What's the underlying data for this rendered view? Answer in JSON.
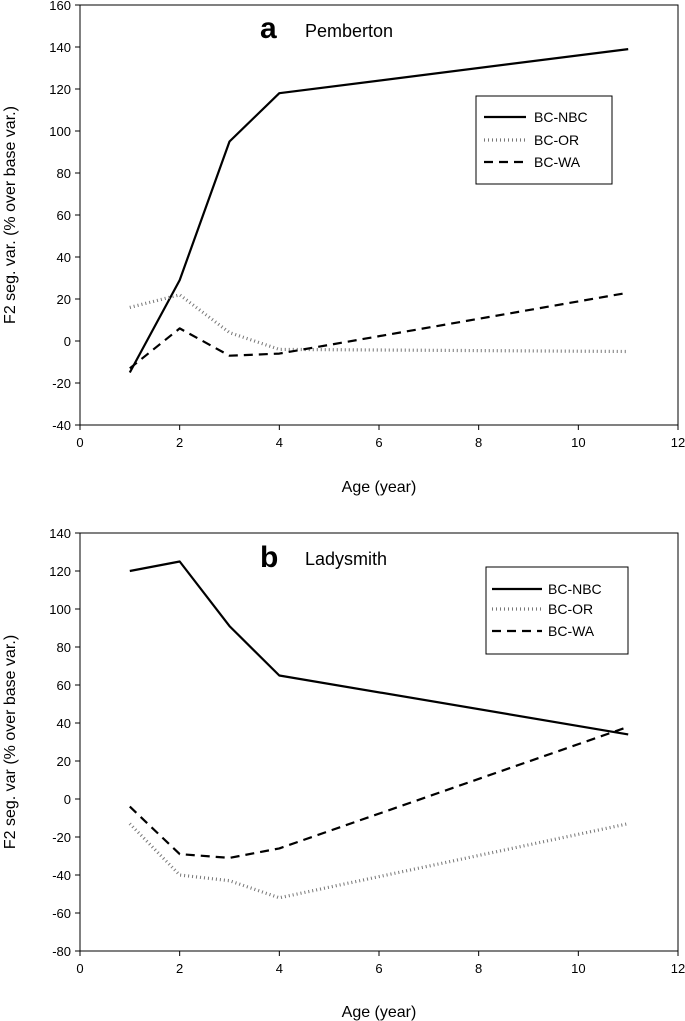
{
  "chart_data": [
    {
      "type": "line",
      "panel_letter": "a",
      "title": "Pemberton",
      "xlabel": "Age (year)",
      "ylabel": "F2 seg. var. (% over base var.)",
      "xlim": [
        0,
        12
      ],
      "ylim": [
        -40,
        160
      ],
      "xticks": [
        "0",
        "2",
        "4",
        "6",
        "8",
        "10",
        "12"
      ],
      "yticks": [
        "-40",
        "-20",
        "0",
        "20",
        "40",
        "60",
        "80",
        "100",
        "120",
        "140",
        "160"
      ],
      "x": [
        1,
        2,
        3,
        4,
        11
      ],
      "legend_position": "upper-right",
      "series": [
        {
          "name": "BC-NBC",
          "style": "solid",
          "values": [
            -15,
            29,
            95,
            118,
            139
          ]
        },
        {
          "name": "BC-OR",
          "style": "dotted",
          "values": [
            16,
            22,
            4,
            -4,
            -5
          ]
        },
        {
          "name": "BC-WA",
          "style": "dashed",
          "values": [
            -13,
            6,
            -7,
            -6,
            23
          ]
        }
      ]
    },
    {
      "type": "line",
      "panel_letter": "b",
      "title": "Ladysmith",
      "xlabel": "Age (year)",
      "ylabel": "F2 seg. var (% over base var.)",
      "xlim": [
        0,
        12
      ],
      "ylim": [
        -80,
        140
      ],
      "xticks": [
        "0",
        "2",
        "4",
        "6",
        "8",
        "10",
        "12"
      ],
      "yticks": [
        "-80",
        "-60",
        "-40",
        "-20",
        "0",
        "20",
        "40",
        "60",
        "80",
        "100",
        "120",
        "140"
      ],
      "x": [
        1,
        2,
        3,
        4,
        11
      ],
      "legend_position": "upper-right",
      "series": [
        {
          "name": "BC-NBC",
          "style": "solid",
          "values": [
            120,
            125,
            91,
            65,
            34
          ]
        },
        {
          "name": "BC-OR",
          "style": "dotted",
          "values": [
            -13,
            -40,
            -43,
            -52,
            -13
          ]
        },
        {
          "name": "BC-WA",
          "style": "dashed",
          "values": [
            -4,
            -29,
            -31,
            -26,
            38
          ]
        }
      ]
    }
  ]
}
